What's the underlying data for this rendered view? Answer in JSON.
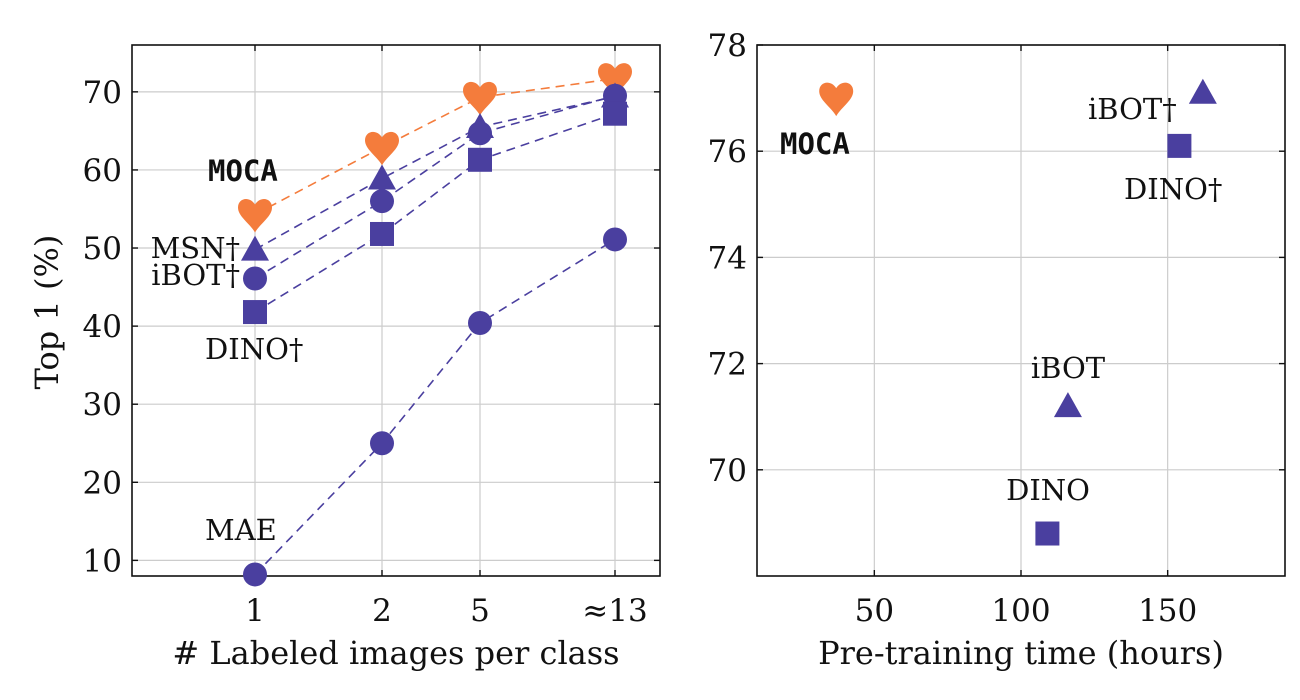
{
  "colors": {
    "orange": "#F47C3C",
    "purple": "#4A3F9F",
    "grid": "#CCCCCC",
    "axis": "#111111"
  },
  "chart_data": [
    {
      "type": "line",
      "xlabel": "# Labeled images per class",
      "ylabel": "Top 1 (%)",
      "categories": [
        "1",
        "2",
        "5",
        "≈13"
      ],
      "ylim": [
        8,
        76
      ],
      "yticks": [
        10,
        20,
        30,
        40,
        50,
        60,
        70
      ],
      "grid": true,
      "series": [
        {
          "name": "MOCA",
          "marker": "heart",
          "color": "#F47C3C",
          "values": [
            54.3,
            62.9,
            69.3,
            71.7
          ]
        },
        {
          "name": "MSN†",
          "marker": "triangle",
          "color": "#4A3F9F",
          "values": [
            49.8,
            58.9,
            65.5,
            69.4
          ]
        },
        {
          "name": "iBOT†",
          "marker": "circle",
          "color": "#4A3F9F",
          "values": [
            46.1,
            56.0,
            64.7,
            69.5
          ]
        },
        {
          "name": "DINO†",
          "marker": "square",
          "color": "#4A3F9F",
          "values": [
            41.8,
            51.8,
            61.3,
            67.2
          ]
        },
        {
          "name": "MAE",
          "marker": "circle",
          "color": "#4A3F9F",
          "values": [
            8.2,
            25.0,
            40.4,
            51.1
          ]
        }
      ]
    },
    {
      "type": "scatter",
      "xlabel": "Pre-training time (hours)",
      "ylabel": "",
      "xlim": [
        10,
        190
      ],
      "ylim": [
        68,
        78
      ],
      "xticks": [
        50,
        100,
        150
      ],
      "yticks": [
        70,
        72,
        74,
        76,
        78
      ],
      "grid": true,
      "points": [
        {
          "label": "MOCA",
          "marker": "heart",
          "color": "#F47C3C",
          "x": 37,
          "y": 77.0
        },
        {
          "label": "iBOT†",
          "marker": "triangle",
          "color": "#4A3F9F",
          "x": 162,
          "y": 77.1
        },
        {
          "label": "DINO†",
          "marker": "square",
          "color": "#4A3F9F",
          "x": 154,
          "y": 76.1
        },
        {
          "label": "iBOT",
          "marker": "triangle",
          "color": "#4A3F9F",
          "x": 116,
          "y": 71.2
        },
        {
          "label": "DINO",
          "marker": "square",
          "color": "#4A3F9F",
          "x": 109,
          "y": 68.8
        }
      ]
    }
  ]
}
